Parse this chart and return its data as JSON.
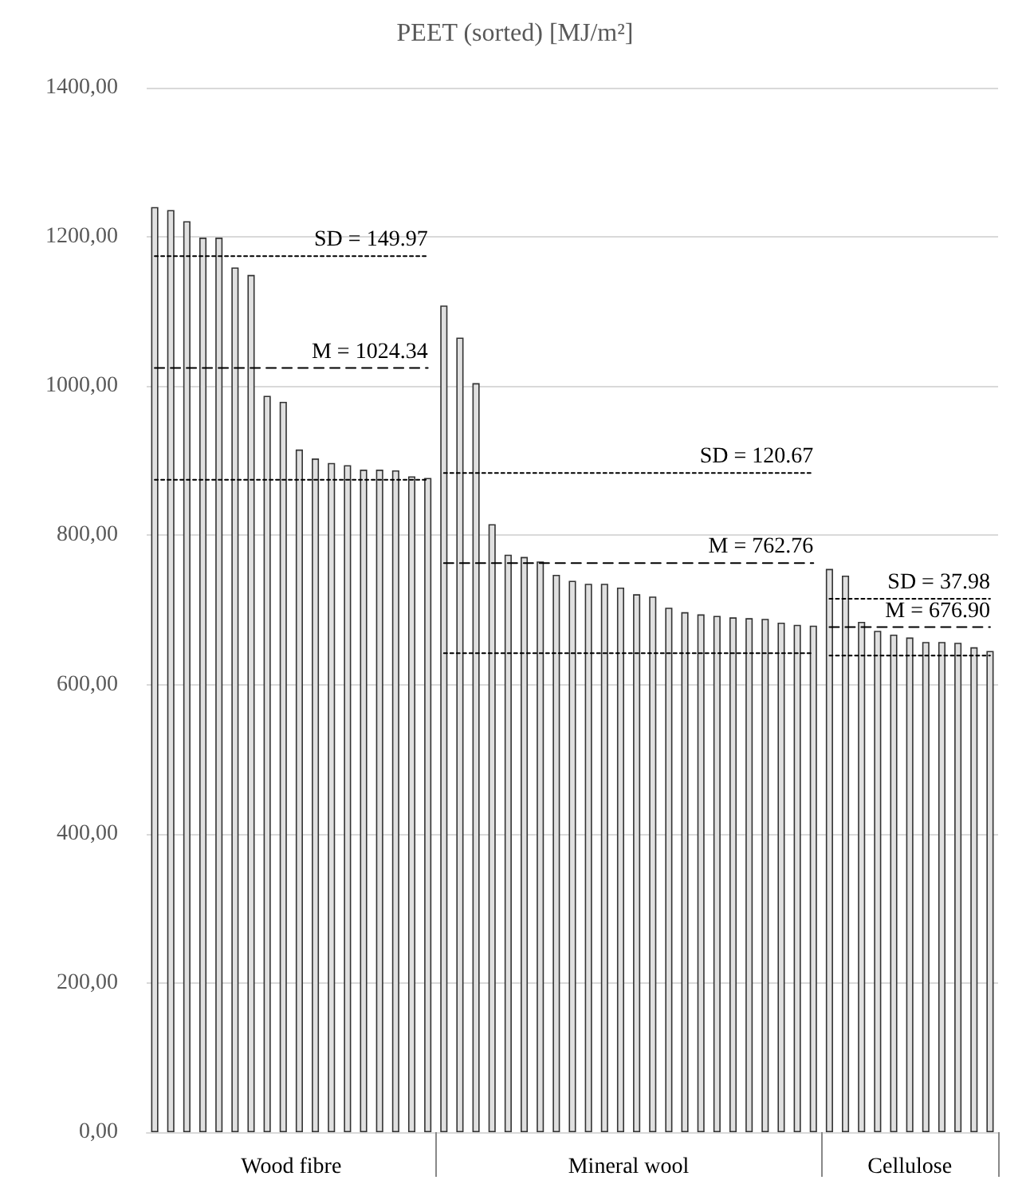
{
  "chart_data": {
    "type": "bar",
    "title": "PEET (sorted) [MJ/m²]",
    "categories": [
      null,
      null,
      null,
      null,
      null,
      null,
      null,
      null,
      null,
      null,
      null,
      null,
      null,
      null,
      null,
      null,
      null,
      null,
      null,
      null,
      null,
      null,
      null,
      null,
      null,
      null,
      null,
      null,
      null,
      null,
      null,
      null,
      null,
      null,
      null,
      null,
      null,
      null,
      null,
      null,
      null,
      null,
      null,
      null,
      null,
      null,
      null,
      null,
      null,
      null,
      null,
      null,
      null
    ],
    "series": [
      {
        "name": "Wood fibre",
        "color": "#e0e0e0",
        "values": [
          1240,
          1236,
          1221,
          1199,
          1199,
          1159,
          1149,
          987,
          979,
          915,
          903,
          897,
          894,
          888,
          888,
          887,
          879,
          877,
          null,
          null,
          null,
          null,
          null,
          null,
          null,
          null,
          null,
          null,
          null,
          null,
          null,
          null,
          null,
          null,
          null,
          null,
          null,
          null,
          null,
          null,
          null,
          null,
          null,
          null,
          null,
          null,
          null,
          null,
          null,
          null,
          null,
          null,
          null
        ]
      },
      {
        "name": "Mineral wool",
        "color": "#e0e0e0",
        "values": [
          null,
          null,
          null,
          null,
          null,
          null,
          null,
          null,
          null,
          null,
          null,
          null,
          null,
          null,
          null,
          null,
          null,
          null,
          1108,
          1065,
          1004,
          815,
          774,
          771,
          765,
          747,
          739,
          735,
          735,
          730,
          721,
          718,
          703,
          697,
          694,
          692,
          690,
          689,
          688,
          683,
          680,
          679,
          null,
          null,
          null,
          null,
          null,
          null,
          null,
          null,
          null,
          null,
          null
        ]
      },
      {
        "name": "Cellulose",
        "color": "#e0e0e0",
        "values": [
          null,
          null,
          null,
          null,
          null,
          null,
          null,
          null,
          null,
          null,
          null,
          null,
          null,
          null,
          null,
          null,
          null,
          null,
          null,
          null,
          null,
          null,
          null,
          null,
          null,
          null,
          null,
          null,
          null,
          null,
          null,
          null,
          null,
          null,
          null,
          null,
          null,
          null,
          null,
          null,
          null,
          null,
          755,
          746,
          684,
          672,
          667,
          663,
          657,
          657,
          656,
          650,
          645
        ]
      },
      {
        "type": "line",
        "name": "SD = 149.97",
        "color": "#000000",
        "line_style": "dotted",
        "values": [
          1174.31,
          1174.31,
          1174.31,
          1174.31,
          1174.31,
          1174.31,
          1174.31,
          1174.31,
          1174.31,
          1174.31,
          1174.31,
          1174.31,
          1174.31,
          1174.31,
          1174.31,
          1174.31,
          1174.31,
          1174.31,
          null,
          null,
          null,
          null,
          null,
          null,
          null,
          null,
          null,
          null,
          null,
          null,
          null,
          null,
          null,
          null,
          null,
          null,
          null,
          null,
          null,
          null,
          null,
          null,
          null,
          null,
          null,
          null,
          null,
          null,
          null,
          null,
          null,
          null,
          null
        ]
      },
      {
        "type": "line",
        "name": "M = 1024.34",
        "color": "#000000",
        "line_style": "dashed",
        "values": [
          1024.34,
          1024.34,
          1024.34,
          1024.34,
          1024.34,
          1024.34,
          1024.34,
          1024.34,
          1024.34,
          1024.34,
          1024.34,
          1024.34,
          1024.34,
          1024.34,
          1024.34,
          1024.34,
          1024.34,
          1024.34,
          null,
          null,
          null,
          null,
          null,
          null,
          null,
          null,
          null,
          null,
          null,
          null,
          null,
          null,
          null,
          null,
          null,
          null,
          null,
          null,
          null,
          null,
          null,
          null,
          null,
          null,
          null,
          null,
          null,
          null,
          null,
          null,
          null,
          null,
          null
        ]
      },
      {
        "type": "line",
        "color": "#000000",
        "line_style": "dotted",
        "values": [
          874.37,
          874.37,
          874.37,
          874.37,
          874.37,
          874.37,
          874.37,
          874.37,
          874.37,
          874.37,
          874.37,
          874.37,
          874.37,
          874.37,
          874.37,
          874.37,
          874.37,
          874.37,
          null,
          null,
          null,
          null,
          null,
          null,
          null,
          null,
          null,
          null,
          null,
          null,
          null,
          null,
          null,
          null,
          null,
          null,
          null,
          null,
          null,
          null,
          null,
          null,
          null,
          null,
          null,
          null,
          null,
          null,
          null,
          null,
          null,
          null,
          null
        ]
      },
      {
        "type": "line",
        "name": "SD = 120.67",
        "color": "#000000",
        "line_style": "dotted",
        "values": [
          null,
          null,
          null,
          null,
          null,
          null,
          null,
          null,
          null,
          null,
          null,
          null,
          null,
          null,
          null,
          null,
          null,
          null,
          883.43,
          883.43,
          883.43,
          883.43,
          883.43,
          883.43,
          883.43,
          883.43,
          883.43,
          883.43,
          883.43,
          883.43,
          883.43,
          883.43,
          883.43,
          883.43,
          883.43,
          883.43,
          883.43,
          883.43,
          883.43,
          883.43,
          883.43,
          883.43,
          null,
          null,
          null,
          null,
          null,
          null,
          null,
          null,
          null,
          null,
          null
        ]
      },
      {
        "type": "line",
        "name": "M = 762.76",
        "color": "#000000",
        "line_style": "dashed",
        "values": [
          null,
          null,
          null,
          null,
          null,
          null,
          null,
          null,
          null,
          null,
          null,
          null,
          null,
          null,
          null,
          null,
          null,
          null,
          762.76,
          762.76,
          762.76,
          762.76,
          762.76,
          762.76,
          762.76,
          762.76,
          762.76,
          762.76,
          762.76,
          762.76,
          762.76,
          762.76,
          762.76,
          762.76,
          762.76,
          762.76,
          762.76,
          762.76,
          762.76,
          762.76,
          762.76,
          762.76,
          null,
          null,
          null,
          null,
          null,
          null,
          null,
          null,
          null,
          null,
          null
        ]
      },
      {
        "type": "line",
        "color": "#000000",
        "line_style": "dotted",
        "values": [
          null,
          null,
          null,
          null,
          null,
          null,
          null,
          null,
          null,
          null,
          null,
          null,
          null,
          null,
          null,
          null,
          null,
          null,
          642.09,
          642.09,
          642.09,
          642.09,
          642.09,
          642.09,
          642.09,
          642.09,
          642.09,
          642.09,
          642.09,
          642.09,
          642.09,
          642.09,
          642.09,
          642.09,
          642.09,
          642.09,
          642.09,
          642.09,
          642.09,
          642.09,
          642.09,
          642.09,
          null,
          null,
          null,
          null,
          null,
          null,
          null,
          null,
          null,
          null,
          null
        ]
      },
      {
        "type": "line",
        "name": "SD = 37.98",
        "color": "#000000",
        "line_style": "dotted",
        "values": [
          null,
          null,
          null,
          null,
          null,
          null,
          null,
          null,
          null,
          null,
          null,
          null,
          null,
          null,
          null,
          null,
          null,
          null,
          null,
          null,
          null,
          null,
          null,
          null,
          null,
          null,
          null,
          null,
          null,
          null,
          null,
          null,
          null,
          null,
          null,
          null,
          null,
          null,
          null,
          null,
          null,
          null,
          714.88,
          714.88,
          714.88,
          714.88,
          714.88,
          714.88,
          714.88,
          714.88,
          714.88,
          714.88,
          714.88
        ]
      },
      {
        "type": "line",
        "name": "M = 676.90",
        "color": "#000000",
        "line_style": "dashed",
        "values": [
          null,
          null,
          null,
          null,
          null,
          null,
          null,
          null,
          null,
          null,
          null,
          null,
          null,
          null,
          null,
          null,
          null,
          null,
          null,
          null,
          null,
          null,
          null,
          null,
          null,
          null,
          null,
          null,
          null,
          null,
          null,
          null,
          null,
          null,
          null,
          null,
          null,
          null,
          null,
          null,
          null,
          null,
          676.9,
          676.9,
          676.9,
          676.9,
          676.9,
          676.9,
          676.9,
          676.9,
          676.9,
          676.9,
          676.9
        ]
      },
      {
        "type": "line",
        "color": "#000000",
        "line_style": "dotted",
        "values": [
          null,
          null,
          null,
          null,
          null,
          null,
          null,
          null,
          null,
          null,
          null,
          null,
          null,
          null,
          null,
          null,
          null,
          null,
          null,
          null,
          null,
          null,
          null,
          null,
          null,
          null,
          null,
          null,
          null,
          null,
          null,
          null,
          null,
          null,
          null,
          null,
          null,
          null,
          null,
          null,
          null,
          null,
          638.92,
          638.92,
          638.92,
          638.92,
          638.92,
          638.92,
          638.92,
          638.92,
          638.92,
          638.92,
          638.92
        ]
      }
    ],
    "ylim": [
      0,
      1400
    ],
    "yticks": [
      {
        "value": 0,
        "label": "0,00"
      },
      {
        "value": 200,
        "label": "200,00"
      },
      {
        "value": 400,
        "label": "400,00"
      },
      {
        "value": 600,
        "label": "600,00"
      },
      {
        "value": 800,
        "label": "800,00"
      },
      {
        "value": 1000,
        "label": "1000,00"
      },
      {
        "value": 1200,
        "label": "1200,00"
      },
      {
        "value": 1400,
        "label": "1400,00"
      }
    ],
    "grid": "y"
  }
}
